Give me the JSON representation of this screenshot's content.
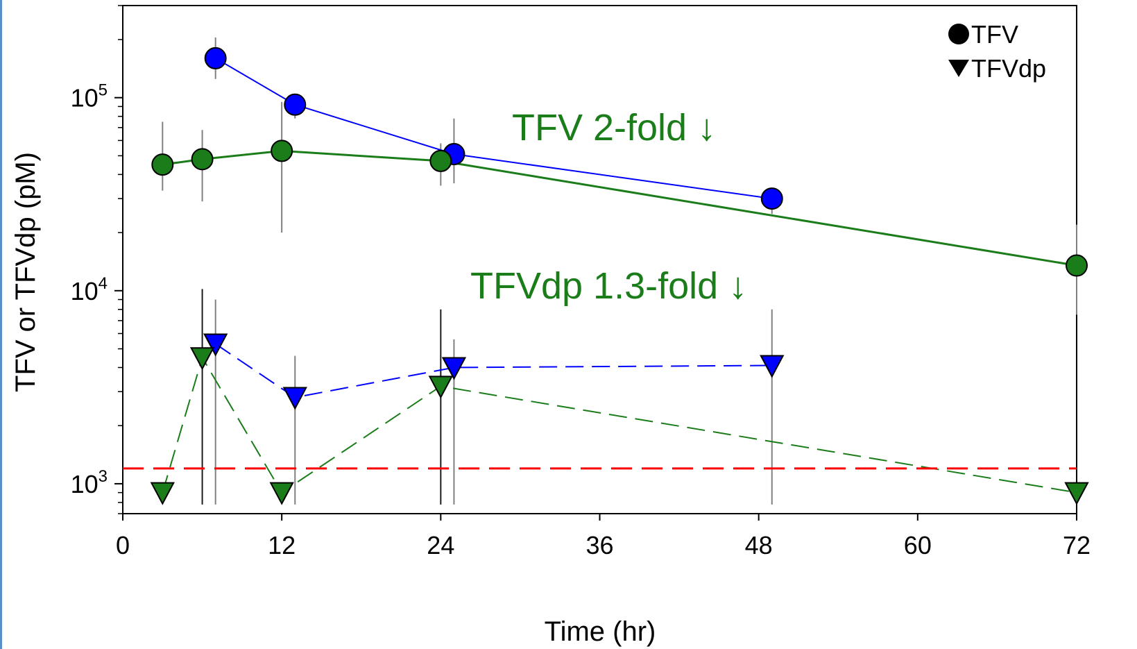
{
  "chart_data": {
    "type": "line",
    "xlabel": "Time (hr)",
    "ylabel": "TFV or TFVdp (pM)",
    "y_scale": "log",
    "xlim": [
      0,
      72
    ],
    "ylim": [
      700,
      300000
    ],
    "x_ticks": [
      "0",
      "12",
      "24",
      "36",
      "48",
      "60",
      "72"
    ],
    "y_ticks": [
      {
        "value": 1000,
        "base": "10",
        "exp": "3"
      },
      {
        "value": 10000,
        "base": "10",
        "exp": "4"
      },
      {
        "value": 100000,
        "base": "10",
        "exp": "5"
      }
    ],
    "legend": {
      "position": "top-right",
      "entries": [
        {
          "label": "TFV",
          "marker": "circle"
        },
        {
          "label": "TFVdp",
          "marker": "down-triangle"
        }
      ]
    },
    "annotations": [
      {
        "text": "TFV 2-fold ↓",
        "color": "#1a7d1a"
      },
      {
        "text": "TFVdp 1.3-fold ↓",
        "color": "#1a7d1a"
      }
    ],
    "reference_line": {
      "y": 1200,
      "color": "#ff0000",
      "style": "dashed"
    },
    "series": [
      {
        "key": "tfv_blue",
        "marker": "circle",
        "color": "#0000ff",
        "line": "solid",
        "points": [
          {
            "x": 7,
            "y": 160000,
            "lo": 125000,
            "hi": 205000
          },
          {
            "x": 13,
            "y": 92000,
            "lo": 78000,
            "hi": 97000
          },
          {
            "x": 25,
            "y": 51000,
            "lo": 36000,
            "hi": 78000
          },
          {
            "x": 49,
            "y": 30000,
            "lo": 25000,
            "hi": 31000
          }
        ]
      },
      {
        "key": "tfv_green",
        "marker": "circle",
        "color": "#1a7d1a",
        "line": "solid",
        "points": [
          {
            "x": 3,
            "y": 45000,
            "lo": 33000,
            "hi": 75000
          },
          {
            "x": 6,
            "y": 48000,
            "lo": 29000,
            "hi": 68000
          },
          {
            "x": 12,
            "y": 53000,
            "lo": 20000,
            "hi": 95000
          },
          {
            "x": 24,
            "y": 47000,
            "lo": 35000,
            "hi": 58000
          },
          {
            "x": 72,
            "y": 13500,
            "lo": 7500,
            "hi": 22000
          }
        ]
      },
      {
        "key": "tfvdp_blue",
        "marker": "down-triangle",
        "color": "#0000ff",
        "line": "dashed",
        "points": [
          {
            "x": 7,
            "y": 5300,
            "lo": 780,
            "hi": 9000
          },
          {
            "x": 13,
            "y": 2800,
            "lo": 780,
            "hi": 4600
          },
          {
            "x": 25,
            "y": 4000,
            "lo": 780,
            "hi": 5600
          },
          {
            "x": 49,
            "y": 4100,
            "lo": 780,
            "hi": 8000
          }
        ]
      },
      {
        "key": "tfvdp_green",
        "marker": "down-triangle",
        "color": "#1a7d1a",
        "line": "dashed",
        "points": [
          {
            "x": 3,
            "y": 900
          },
          {
            "x": 6,
            "y": 4500,
            "lo": 780,
            "hi": 10200
          },
          {
            "x": 12,
            "y": 900
          },
          {
            "x": 24,
            "y": 3200,
            "lo": 780,
            "hi": 8000
          },
          {
            "x": 72,
            "y": 900
          }
        ]
      }
    ]
  }
}
